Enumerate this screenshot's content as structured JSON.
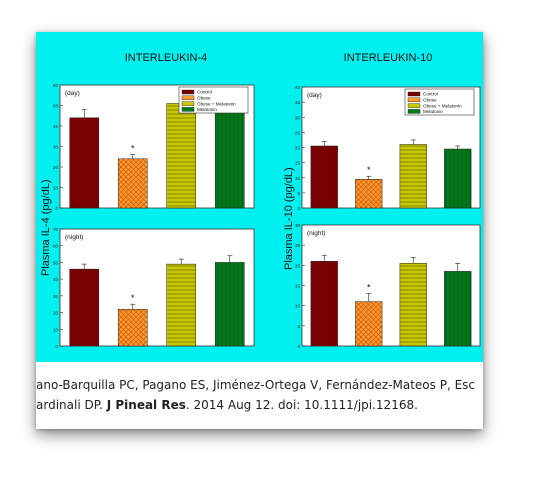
{
  "citation": {
    "line1": "ano-Barquilla PC, Pagano ES, Jiménez-Ortega V, Fernández-Mateos P, Esc",
    "line2_pre": "ardinali DP. ",
    "line2_journal": "J Pineal Res",
    "line2_post": ". 2014 Aug 12. doi: 10.1111/jpi.12168."
  },
  "legend": [
    "Control",
    "Obese",
    "Obese + Melatonin",
    "Melatonin"
  ],
  "series_colors": [
    "#7a0000",
    "#ff9933",
    "#c8c800",
    "#007a1a"
  ],
  "chart_data": [
    {
      "type": "bar",
      "title": "INTERLEUKIN-4",
      "ylabel": "Plasma IL-4 (pg/dL)",
      "panels": [
        {
          "label": "(day)",
          "categories": [
            "Control",
            "Obese",
            "Obese + Melatonin",
            "Melatonin"
          ],
          "values": [
            44,
            24,
            51,
            49
          ],
          "errors": [
            4,
            2,
            4,
            3
          ],
          "significance": [
            "",
            "*",
            "",
            ""
          ],
          "ylim": [
            0,
            60
          ],
          "yticks": [
            0,
            10,
            20,
            30,
            40,
            50,
            60
          ],
          "legend": "top-right"
        },
        {
          "label": "(night)",
          "categories": [
            "Control",
            "Obese",
            "Obese + Melatonin",
            "Melatonin"
          ],
          "values": [
            46,
            22,
            49,
            50
          ],
          "errors": [
            3,
            3,
            3,
            4
          ],
          "significance": [
            "",
            "*",
            "",
            ""
          ],
          "ylim": [
            0,
            70
          ],
          "yticks": [
            0,
            10,
            20,
            30,
            40,
            50,
            60,
            70
          ]
        }
      ]
    },
    {
      "type": "bar",
      "title": "INTERLEUKIN-10",
      "ylabel": "Plasma IL-10 (pg/dL)",
      "panels": [
        {
          "label": "(day)",
          "categories": [
            "Control",
            "Obese",
            "Obese + Melatonin",
            "Melatonin"
          ],
          "values": [
            20.5,
            9.5,
            21,
            19.5
          ],
          "errors": [
            1.5,
            1,
            1.5,
            1
          ],
          "significance": [
            "",
            "*",
            "",
            ""
          ],
          "ylim": [
            0,
            40
          ],
          "yticks": [
            0,
            5,
            10,
            15,
            20,
            25,
            30,
            35,
            40
          ],
          "legend": "top-right"
        },
        {
          "label": "(night)",
          "categories": [
            "Control",
            "Obese",
            "Obese + Melatonin",
            "Melatonin"
          ],
          "values": [
            21,
            11,
            20.5,
            18.5
          ],
          "errors": [
            1.5,
            2,
            1.5,
            2
          ],
          "significance": [
            "",
            "*",
            "",
            ""
          ],
          "ylim": [
            0,
            30
          ],
          "yticks": [
            0,
            5,
            10,
            15,
            20,
            25,
            30
          ]
        }
      ]
    }
  ]
}
